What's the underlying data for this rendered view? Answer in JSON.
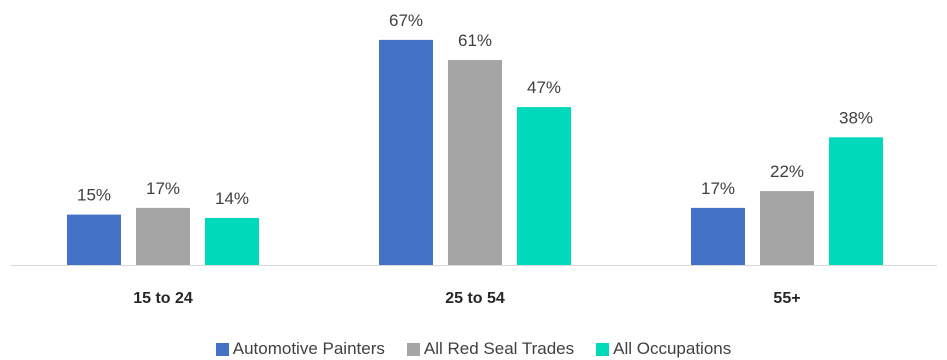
{
  "chart_data": {
    "type": "bar",
    "categories": [
      "15 to 24",
      "25 to 54",
      "55+"
    ],
    "series": [
      {
        "name": "Automotive Painters",
        "values": [
          15,
          67,
          17
        ],
        "labels": [
          "15%",
          "67%",
          "17%"
        ],
        "color": "#4472C4"
      },
      {
        "name": "All Red Seal Trades",
        "values": [
          17,
          61,
          22
        ],
        "labels": [
          "17%",
          "61%",
          "22%"
        ],
        "color": "#A5A5A5"
      },
      {
        "name": "All Occupations",
        "values": [
          14,
          47,
          38
        ],
        "labels": [
          "14%",
          "47%",
          "38%"
        ],
        "color": "#00D9BA"
      }
    ],
    "title": "",
    "xlabel": "",
    "ylabel": "",
    "ylim": [
      0,
      70
    ],
    "grid": false,
    "legend_position": "bottom"
  }
}
